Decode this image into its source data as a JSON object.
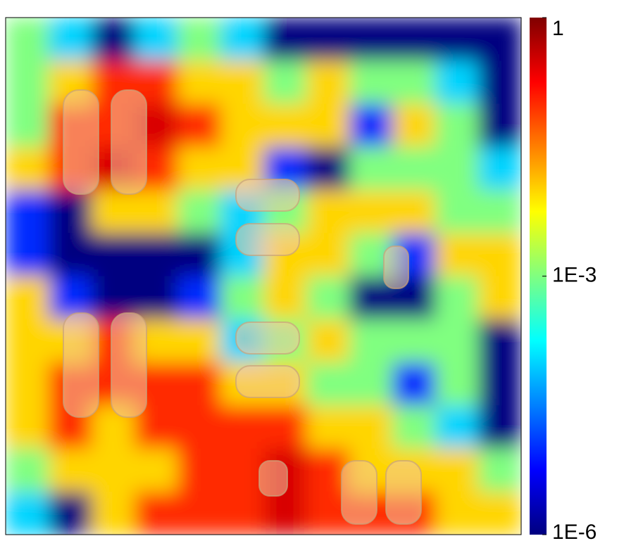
{
  "chart_data": {
    "type": "heatmap",
    "colormap": "jet",
    "log_scale": true,
    "clim": [
      1e-06,
      1
    ],
    "cticks": [
      {
        "value": 1e-06,
        "label": "1E-6"
      },
      {
        "value": 0.001,
        "label": "1E-3"
      },
      {
        "value": 1,
        "label": "1"
      }
    ],
    "values": [
      [
        0.001,
        0.0001,
        1e-06,
        0.0001,
        0.001,
        0.0001,
        1e-06,
        1e-06,
        1e-06,
        1e-06,
        1e-06,
        1e-06
      ],
      [
        0.001,
        0.01,
        0.1,
        0.1,
        0.01,
        0.01,
        0.001,
        0.01,
        0.001,
        0.001,
        0.0001,
        1e-06
      ],
      [
        0.001,
        0.1,
        0.1,
        0.3,
        0.1,
        0.01,
        0.01,
        0.01,
        1e-05,
        0.01,
        0.001,
        1e-06
      ],
      [
        0.01,
        0.1,
        0.3,
        0.1,
        0.01,
        0.01,
        1e-05,
        1e-06,
        0.001,
        0.001,
        0.001,
        0.0001
      ],
      [
        1e-05,
        1e-06,
        0.01,
        0.01,
        0.001,
        0.0001,
        0.001,
        0.01,
        0.01,
        0.01,
        0.001,
        0.001
      ],
      [
        1e-05,
        1e-06,
        1e-06,
        1e-06,
        1e-06,
        0.0001,
        0.01,
        0.01,
        0.001,
        1e-05,
        0.01,
        0.01
      ],
      [
        0.01,
        1e-05,
        1e-06,
        1e-06,
        1e-05,
        0.001,
        0.01,
        0.001,
        1e-06,
        1e-06,
        0.001,
        0.01
      ],
      [
        0.01,
        0.01,
        0.1,
        0.01,
        0.01,
        0.0001,
        0.001,
        0.01,
        0.001,
        0.001,
        0.001,
        1e-06
      ],
      [
        0.01,
        0.1,
        0.1,
        0.1,
        0.1,
        0.01,
        0.01,
        0.001,
        0.001,
        1e-05,
        0.001,
        1e-06
      ],
      [
        0.01,
        0.1,
        0.01,
        0.1,
        0.1,
        0.1,
        0.1,
        0.01,
        0.01,
        0.001,
        0.0001,
        1e-06
      ],
      [
        0.001,
        0.01,
        0.01,
        0.01,
        0.1,
        0.1,
        0.3,
        0.1,
        0.01,
        0.01,
        0.01,
        0.001
      ],
      [
        0.0001,
        1e-06,
        0.01,
        0.1,
        0.1,
        0.1,
        0.3,
        0.1,
        0.1,
        0.1,
        0.01,
        0.01
      ]
    ]
  }
}
